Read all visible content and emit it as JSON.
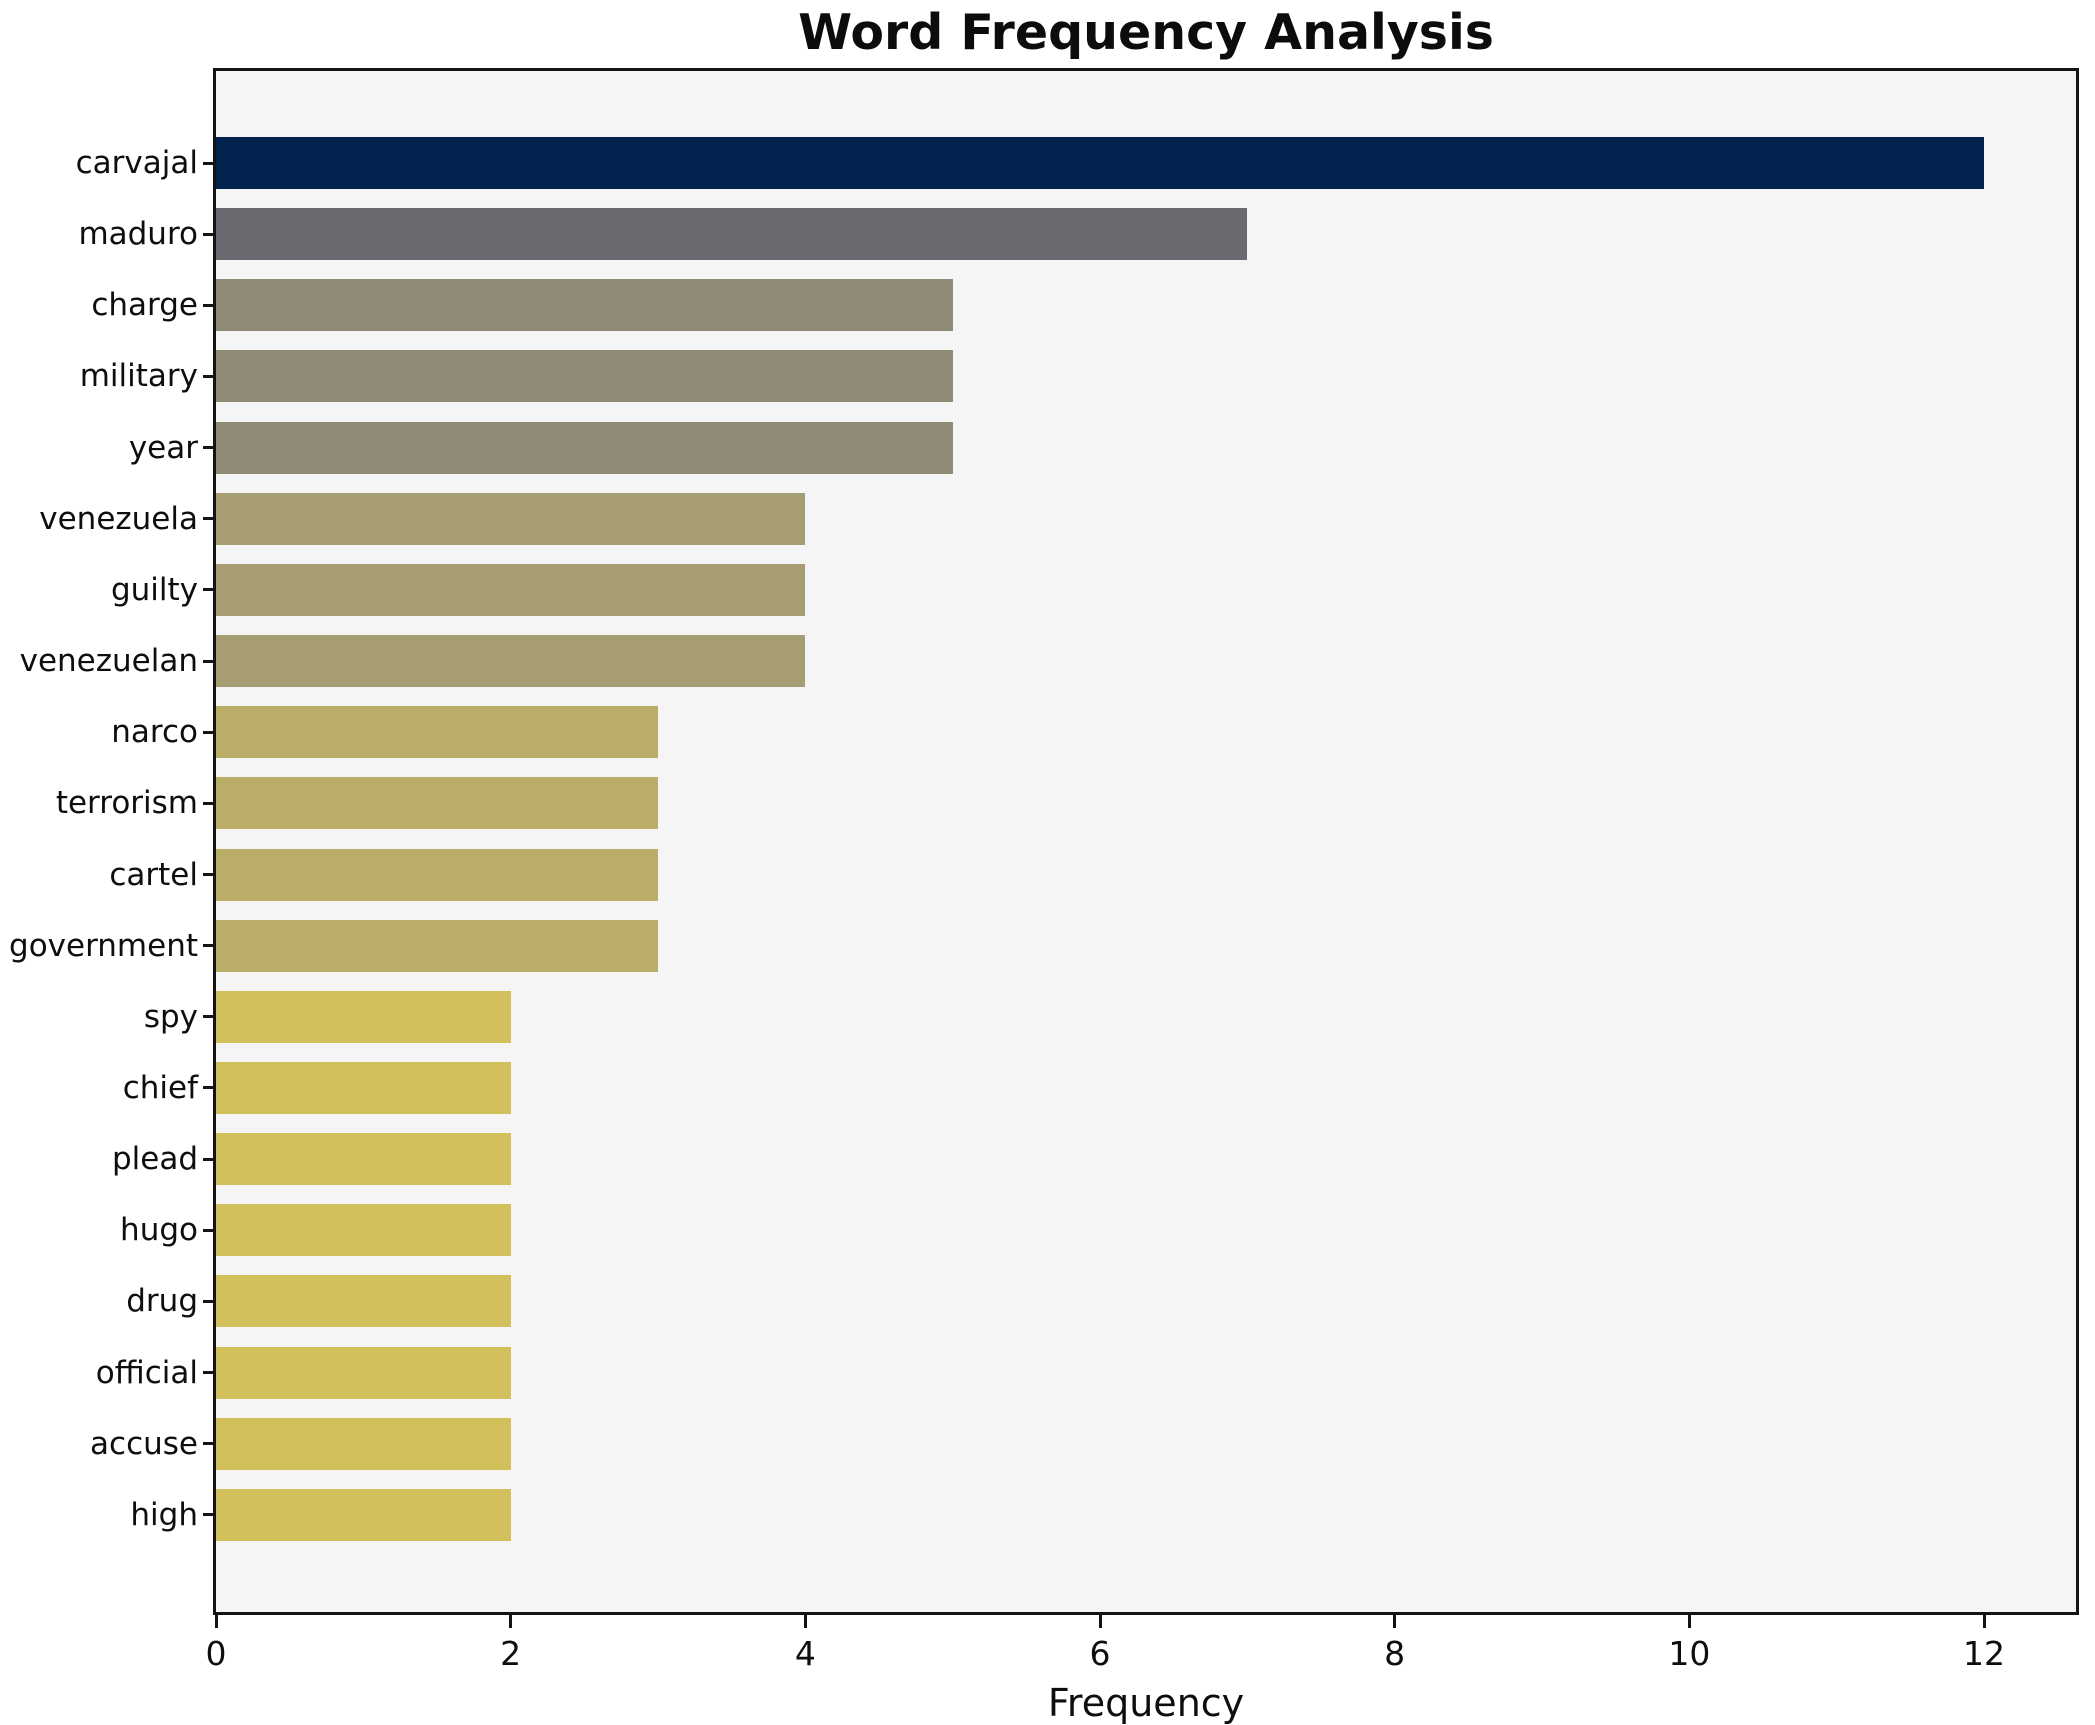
{
  "title": "Word Frequency Analysis",
  "xlabel": "Frequency",
  "chart_data": {
    "type": "bar",
    "orientation": "horizontal",
    "title": "Word Frequency Analysis",
    "xlabel": "Frequency",
    "ylabel": "",
    "categories": [
      "carvajal",
      "maduro",
      "charge",
      "military",
      "year",
      "venezuela",
      "guilty",
      "venezuelan",
      "narco",
      "terrorism",
      "cartel",
      "government",
      "spy",
      "chief",
      "plead",
      "hugo",
      "drug",
      "official",
      "accuse",
      "high"
    ],
    "values": [
      12,
      7,
      5,
      5,
      5,
      4,
      4,
      4,
      3,
      3,
      3,
      3,
      2,
      2,
      2,
      2,
      2,
      2,
      2,
      2
    ],
    "bar_colors": [
      "#02234e",
      "#696b70",
      "#8f8b77",
      "#8f8b77",
      "#8f8b77",
      "#a69e72",
      "#a69e72",
      "#a69e72",
      "#b9ad68",
      "#b9ad68",
      "#b9ad68",
      "#b9ad68",
      "#d2c05c",
      "#d2c05c",
      "#d2c05c",
      "#d2c05c",
      "#d2c05c",
      "#d2c05c",
      "#d2c05c",
      "#d2c05c"
    ],
    "xlim": [
      0,
      12.63
    ],
    "x_ticks": [
      0,
      2,
      4,
      6,
      8,
      10,
      12
    ],
    "grid": false,
    "legend": null,
    "plot_bg": "#f5f5f6",
    "page_bg": "#ffffff",
    "axis_color": "#141414",
    "colors_by_value": {
      "12": "#02234e",
      "7": "#696b70",
      "5": "#8f8b77",
      "4": "#a69e72",
      "3": "#b9ad68",
      "2": "#d2c05c"
    }
  }
}
